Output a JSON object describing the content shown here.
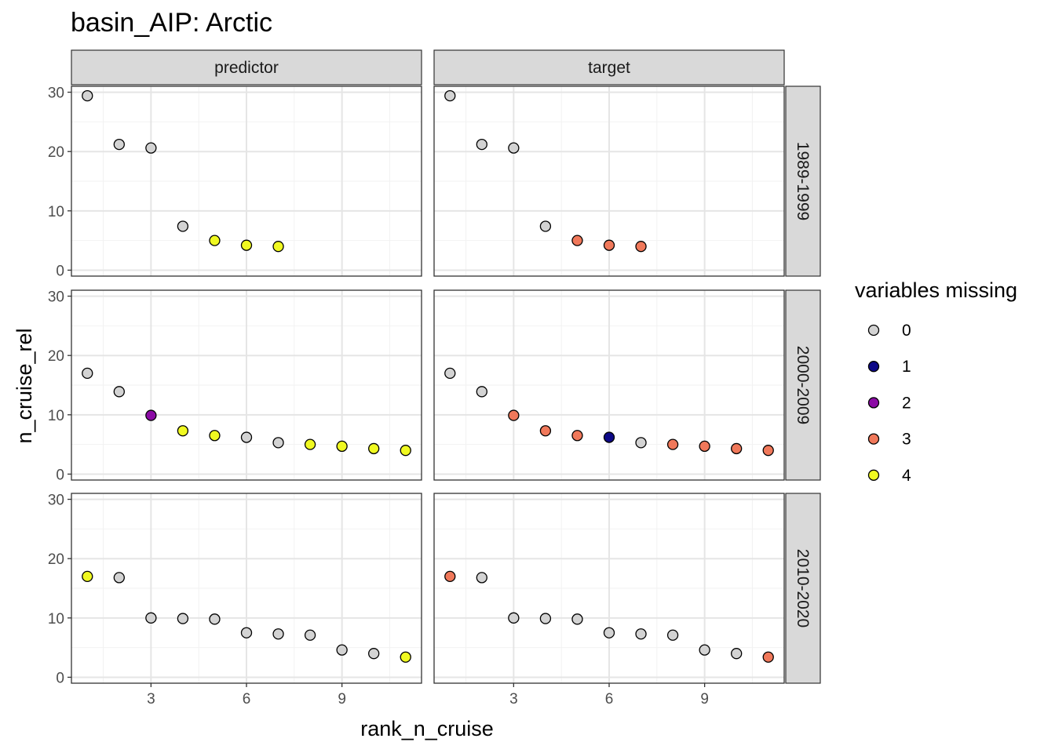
{
  "chart_data": {
    "type": "scatter",
    "title": "basin_AIP: Arctic",
    "xlabel": "rank_n_cruise",
    "ylabel": "n_cruise_rel",
    "xlim": [
      0.5,
      11.5
    ],
    "ylim": [
      -1,
      31
    ],
    "x_ticks": [
      3,
      6,
      9
    ],
    "x_tick_labels": [
      "3",
      "6",
      "9"
    ],
    "y_ticks": [
      0,
      10,
      20,
      30
    ],
    "y_tick_labels": [
      "0",
      "10",
      "20",
      "30"
    ],
    "grid": true,
    "legend_position": "right",
    "column_facets": [
      "predictor",
      "target"
    ],
    "row_facets": [
      "1989-1999",
      "2000-2009",
      "2010-2020"
    ],
    "legend": {
      "title": "variables missing",
      "entries": [
        {
          "label": "0",
          "color": "#d3d3d3"
        },
        {
          "label": "1",
          "color": "#0d0887"
        },
        {
          "label": "2",
          "color": "#8b0aa5"
        },
        {
          "label": "3",
          "color": "#f0785a"
        },
        {
          "label": "4",
          "color": "#f0f921"
        }
      ]
    },
    "panels": [
      {
        "col": "predictor",
        "row": "1989-1999",
        "x": [
          1,
          2,
          3,
          4,
          5,
          6,
          7
        ],
        "y": [
          29.4,
          21.2,
          20.6,
          7.4,
          5.0,
          4.2,
          4.0
        ],
        "missing": [
          0,
          0,
          0,
          0,
          4,
          4,
          4
        ]
      },
      {
        "col": "target",
        "row": "1989-1999",
        "x": [
          1,
          2,
          3,
          4,
          5,
          6,
          7
        ],
        "y": [
          29.4,
          21.2,
          20.6,
          7.4,
          5.0,
          4.2,
          4.0
        ],
        "missing": [
          0,
          0,
          0,
          0,
          3,
          3,
          3
        ]
      },
      {
        "col": "predictor",
        "row": "2000-2009",
        "x": [
          1,
          2,
          3,
          4,
          5,
          6,
          7,
          8,
          9,
          10,
          11
        ],
        "y": [
          17.0,
          13.9,
          9.9,
          7.3,
          6.5,
          6.2,
          5.3,
          5.0,
          4.7,
          4.3,
          4.0
        ],
        "missing": [
          0,
          0,
          2,
          4,
          4,
          0,
          0,
          4,
          4,
          4,
          4
        ]
      },
      {
        "col": "target",
        "row": "2000-2009",
        "x": [
          1,
          2,
          3,
          4,
          5,
          6,
          7,
          8,
          9,
          10,
          11
        ],
        "y": [
          17.0,
          13.9,
          9.9,
          7.3,
          6.5,
          6.2,
          5.3,
          5.0,
          4.7,
          4.3,
          4.0
        ],
        "missing": [
          0,
          0,
          3,
          3,
          3,
          1,
          0,
          3,
          3,
          3,
          3
        ]
      },
      {
        "col": "predictor",
        "row": "2010-2020",
        "x": [
          1,
          2,
          3,
          4,
          5,
          6,
          7,
          8,
          9,
          10,
          11
        ],
        "y": [
          17.0,
          16.8,
          10.0,
          9.9,
          9.8,
          7.5,
          7.3,
          7.1,
          4.6,
          4.0,
          3.4
        ],
        "missing": [
          4,
          0,
          0,
          0,
          0,
          0,
          0,
          0,
          0,
          0,
          4
        ]
      },
      {
        "col": "target",
        "row": "2010-2020",
        "x": [
          1,
          2,
          3,
          4,
          5,
          6,
          7,
          8,
          9,
          10,
          11
        ],
        "y": [
          17.0,
          16.8,
          10.0,
          9.9,
          9.8,
          7.5,
          7.3,
          7.1,
          4.6,
          4.0,
          3.4
        ],
        "missing": [
          3,
          0,
          0,
          0,
          0,
          0,
          0,
          0,
          0,
          0,
          3
        ]
      }
    ]
  }
}
